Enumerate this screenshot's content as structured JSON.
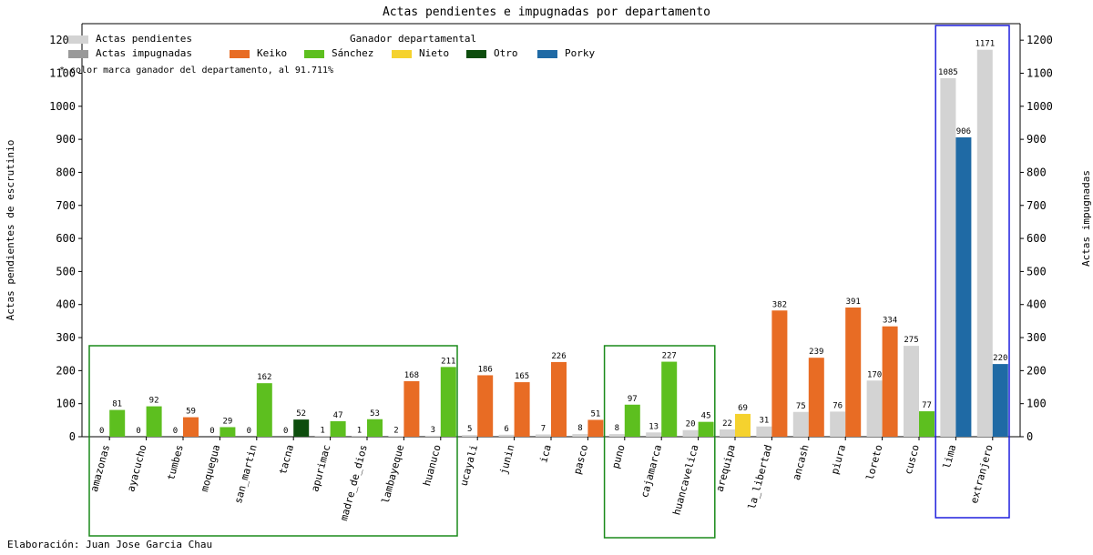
{
  "title": "Actas pendientes e impugnadas por departamento",
  "credit": "Elaboración: Juan Jose Garcia Chau",
  "note": "* color marca ganador del departamento, al 91.711%",
  "legend": {
    "pendientes_label": "Actas pendientes",
    "impugnadas_label": "Actas impugnadas",
    "winner_title": "Ganador departamental",
    "winners": [
      {
        "name": "Keiko",
        "color": "#e86c24"
      },
      {
        "name": "Sánchez",
        "color": "#5dbf1f"
      },
      {
        "name": "Nieto",
        "color": "#f5d22e"
      },
      {
        "name": "Otro",
        "color": "#0d4d0d"
      },
      {
        "name": "Porky",
        "color": "#1f6aa5"
      }
    ]
  },
  "chart_data": {
    "type": "bar",
    "title": "Actas pendientes e impugnadas por departamento",
    "ylabel": "Actas pendientes de escrutinio",
    "ylabel_right": "Actas impugnadas",
    "ylim": [
      0,
      1250
    ],
    "yticks": [
      0,
      100,
      200,
      300,
      400,
      500,
      600,
      700,
      800,
      900,
      1000,
      1100,
      1200
    ],
    "pending_color": "#d3d3d3",
    "impugned_legend_color": "#999999",
    "categories": [
      "amazonas",
      "ayacucho",
      "tumbes",
      "moquegua",
      "san_martin",
      "tacna",
      "apurimac",
      "madre_de_dios",
      "lambayeque",
      "huanuco",
      "ucayali",
      "junin",
      "ica",
      "pasco",
      "puno",
      "cajamarca",
      "huancavelica",
      "arequipa",
      "la_libertad",
      "ancash",
      "piura",
      "loreto",
      "cusco",
      "lima",
      "extranjero"
    ],
    "series": [
      {
        "name": "Actas pendientes",
        "values": [
          0,
          0,
          0,
          0,
          0,
          0,
          1,
          1,
          2,
          3,
          5,
          6,
          7,
          8,
          8,
          13,
          20,
          22,
          31,
          75,
          76,
          170,
          275,
          1085,
          1171
        ]
      },
      {
        "name": "Actas impugnadas",
        "values": [
          81,
          92,
          59,
          29,
          162,
          52,
          47,
          53,
          168,
          211,
          186,
          165,
          226,
          51,
          97,
          227,
          45,
          69,
          382,
          239,
          391,
          334,
          77,
          906,
          220
        ]
      }
    ],
    "winner": [
      "Sánchez",
      "Sánchez",
      "Keiko",
      "Sánchez",
      "Sánchez",
      "Otro",
      "Sánchez",
      "Sánchez",
      "Keiko",
      "Sánchez",
      "Keiko",
      "Keiko",
      "Keiko",
      "Keiko",
      "Sánchez",
      "Sánchez",
      "Sánchez",
      "Nieto",
      "Keiko",
      "Keiko",
      "Keiko",
      "Keiko",
      "Sánchez",
      "Porky",
      "Porky"
    ],
    "highlight_groups": [
      {
        "from": "amazonas",
        "to": "huanuco",
        "color": "#1a8a1a"
      },
      {
        "from": "puno",
        "to": "huancavelica",
        "color": "#1a8a1a"
      },
      {
        "from": "lima",
        "to": "extranjero",
        "color": "#1f1fdd"
      }
    ]
  }
}
